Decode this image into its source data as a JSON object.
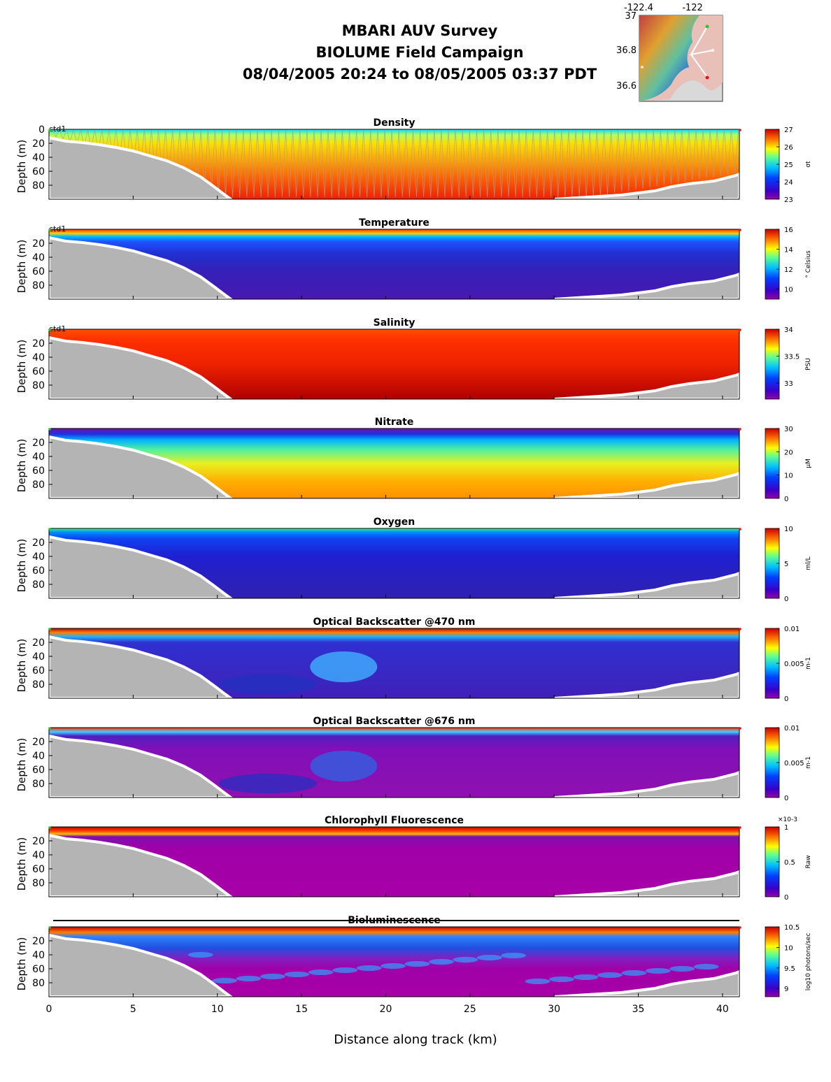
{
  "header": {
    "title_lines": [
      "MBARI AUV Survey",
      "BIOLUME Field Campaign",
      "08/04/2005 20:24  to 08/05/2005 03:37 PDT"
    ]
  },
  "inset_map": {
    "lon_ticks": [
      "-122.4",
      "-122"
    ],
    "lat_ticks": [
      "37",
      "36.8",
      "36.6"
    ]
  },
  "chart_data": {
    "type": "heatmap",
    "x_label": "Distance along track (km)",
    "y_label": "Depth (m)",
    "x_ticks": [
      0,
      5,
      10,
      15,
      20,
      25,
      30,
      35,
      40
    ],
    "xlim": [
      0,
      41
    ],
    "ylim": [
      100,
      0
    ],
    "vehicle_label": "ctd1",
    "panels": [
      {
        "title": "Density",
        "depth_ticks": [
          "0",
          "20",
          "40",
          "60",
          "80"
        ],
        "cbar_ticks": [
          "27",
          "26",
          "25",
          "24",
          "23"
        ],
        "cbar_unit": "σt",
        "clim": [
          23,
          27
        ],
        "scheme": "density",
        "has_label": true,
        "has_yo": true
      },
      {
        "title": "Temperature",
        "depth_ticks": [
          "20",
          "40",
          "60",
          "80"
        ],
        "cbar_ticks": [
          "16",
          "14",
          "12",
          "10"
        ],
        "cbar_unit": "° Celsius",
        "clim": [
          9,
          16
        ],
        "scheme": "temperature",
        "has_label": true
      },
      {
        "title": "Salinity",
        "depth_ticks": [
          "20",
          "40",
          "60",
          "80"
        ],
        "cbar_ticks": [
          "34",
          "33.5",
          "33"
        ],
        "cbar_unit": "PSU",
        "clim": [
          32.7,
          34
        ],
        "scheme": "salinity",
        "has_label": true
      },
      {
        "title": "Nitrate",
        "depth_ticks": [
          "20",
          "40",
          "60",
          "80"
        ],
        "cbar_ticks": [
          "30",
          "20",
          "10",
          "0"
        ],
        "cbar_unit": "μM",
        "clim": [
          0,
          30
        ],
        "scheme": "nitrate"
      },
      {
        "title": "Oxygen",
        "depth_ticks": [
          "20",
          "40",
          "60",
          "80"
        ],
        "cbar_ticks": [
          "10",
          "5",
          "0"
        ],
        "cbar_unit": "ml/L",
        "clim": [
          0,
          10
        ],
        "scheme": "oxygen"
      },
      {
        "title": "Optical Backscatter @470 nm",
        "depth_ticks": [
          "20",
          "40",
          "60",
          "80"
        ],
        "cbar_ticks": [
          "0.01",
          "0.005",
          "0"
        ],
        "cbar_unit": "m-1",
        "clim": [
          0,
          0.01
        ],
        "scheme": "bb470"
      },
      {
        "title": "Optical Backscatter @676 nm",
        "depth_ticks": [
          "20",
          "40",
          "60",
          "80"
        ],
        "cbar_ticks": [
          "0.01",
          "0.005",
          "0"
        ],
        "cbar_unit": "m-1",
        "clim": [
          0,
          0.01
        ],
        "scheme": "bb676"
      },
      {
        "title": "Chlorophyll Fluorescence",
        "depth_ticks": [
          "20",
          "40",
          "60",
          "80"
        ],
        "cbar_ticks": [
          "1",
          "0.5",
          "0"
        ],
        "cbar_unit": "Raw",
        "cbar_exponent": "×10-3",
        "clim": [
          0,
          0.001
        ],
        "scheme": "chl"
      },
      {
        "title": "Bioluminescence",
        "depth_ticks": [
          "20",
          "40",
          "60",
          "80"
        ],
        "cbar_ticks": [
          "10.5",
          "10",
          "9.5",
          "9"
        ],
        "cbar_unit": "log10 photons/sec",
        "clim": [
          8.8,
          10.5
        ],
        "scheme": "biolum",
        "has_topline": true
      }
    ]
  }
}
